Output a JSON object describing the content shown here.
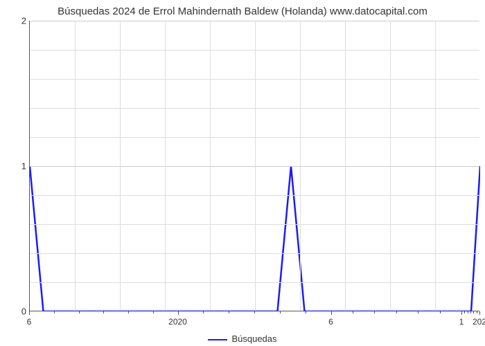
{
  "title": "Búsquedas 2024 de Errol Mahindernath Baldew (Holanda) www.datocapital.com",
  "legend": {
    "label": "Búsquedas"
  },
  "chart": {
    "type": "line",
    "line_color": "#1a1aff",
    "line_width": 2.5,
    "background_color": "#ffffff",
    "grid_color": "#dddddd",
    "axis_color": "#555555",
    "ylim": [
      0,
      2
    ],
    "y_ticks": [
      0,
      1,
      2
    ],
    "y_minor_count_between": 4,
    "x_major_labels": [
      "6",
      "2020",
      "6",
      "1",
      "202"
    ],
    "x_major_positions": [
      0.0,
      0.33,
      0.67,
      0.96,
      1.0
    ],
    "x_minor_per_gap": 5,
    "series": {
      "x": [
        0.0,
        0.03,
        0.06,
        0.52,
        0.55,
        0.58,
        0.61,
        0.64,
        0.95,
        0.98,
        1.0
      ],
      "y": [
        1,
        0,
        0,
        0,
        0,
        1,
        0,
        0,
        0,
        0,
        1
      ]
    }
  },
  "fonts": {
    "title_size": 15,
    "axis_size": 13,
    "legend_size": 13
  }
}
